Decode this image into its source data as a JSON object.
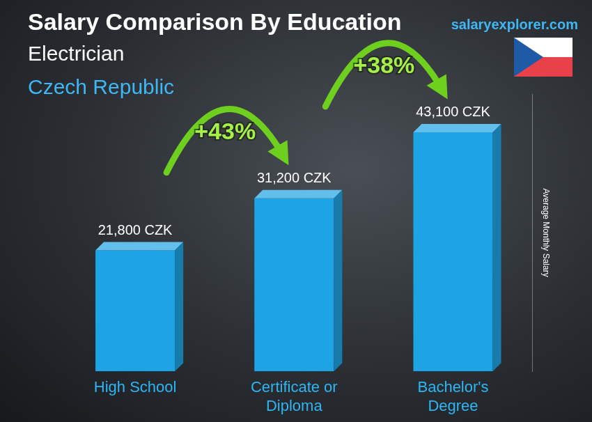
{
  "chart_data": {
    "type": "bar",
    "title": "Salary Comparison By Education",
    "subtitle": [
      "Electrician",
      "Czech Republic"
    ],
    "source": "salaryexplorer.com",
    "y_label": "Average Monthly Salary",
    "categories": [
      "High School",
      [
        "Certificate or",
        "Diploma"
      ],
      [
        "Bachelor's",
        "Degree"
      ]
    ],
    "values": [
      21800,
      31200,
      43100
    ],
    "value_labels": [
      "21,800 CZK",
      "31,200 CZK",
      "43,100 CZK"
    ],
    "data_labels": true,
    "annotations": [
      "+43%",
      "+38%"
    ],
    "color": "#1ea4e4",
    "ylim": [
      0,
      50000
    ],
    "grid": false,
    "tick_labels": "x"
  }
}
